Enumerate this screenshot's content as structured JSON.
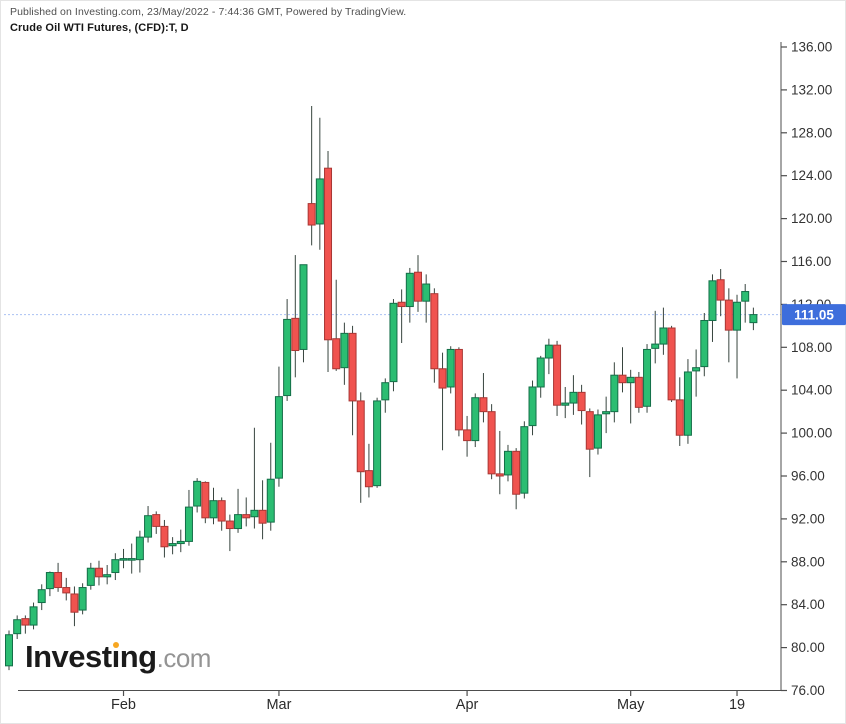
{
  "header": {
    "published": "Published on Investing.com, 23/May/2022 - 7:44:36 GMT, Powered by TradingView.",
    "title": "Crude Oil WTI Futures, (CFD):T, D"
  },
  "logo": {
    "part1": "Invest",
    "dotless_i": "ı",
    "part2": "ng",
    "suffix": ".com"
  },
  "colors": {
    "up_fill": "#2bbd72",
    "up_border": "#146e48",
    "down_fill": "#f0534f",
    "down_border": "#a93734",
    "wick": "#37443e",
    "axis": "#4d4d4d",
    "axis_label": "#333333",
    "price_line": "#aac1f2",
    "badge_bg": "#3e6edc",
    "badge_text": "#ffffff"
  },
  "chart_data": {
    "type": "candlestick",
    "title": "Crude Oil WTI Futures, (CFD):T, D",
    "timeframe": "D",
    "last_price": 111.05,
    "last_price_label": "111.05",
    "y_axis": {
      "min": 76,
      "max": 136,
      "step": 4,
      "labels": [
        "136.00",
        "132.00",
        "128.00",
        "124.00",
        "120.00",
        "116.00",
        "112.00",
        "108.00",
        "104.00",
        "100.00",
        "96.00",
        "92.00",
        "88.00",
        "84.00",
        "80.00",
        "76.00"
      ]
    },
    "x_ticks": [
      {
        "label": "Feb",
        "index": 14
      },
      {
        "label": "Mar",
        "index": 33
      },
      {
        "label": "Apr",
        "index": 56
      },
      {
        "label": "May",
        "index": 76
      },
      {
        "label": "19",
        "index": 89
      }
    ],
    "grid": false,
    "legend": "none",
    "dates": [
      "2022-01-11",
      "2022-01-12",
      "2022-01-13",
      "2022-01-14",
      "2022-01-18",
      "2022-01-19",
      "2022-01-20",
      "2022-01-21",
      "2022-01-24",
      "2022-01-25",
      "2022-01-26",
      "2022-01-27",
      "2022-01-28",
      "2022-01-31",
      "2022-02-01",
      "2022-02-02",
      "2022-02-03",
      "2022-02-04",
      "2022-02-07",
      "2022-02-08",
      "2022-02-09",
      "2022-02-10",
      "2022-02-11",
      "2022-02-14",
      "2022-02-15",
      "2022-02-16",
      "2022-02-17",
      "2022-02-18",
      "2022-02-22",
      "2022-02-23",
      "2022-02-24",
      "2022-02-25",
      "2022-02-28",
      "2022-03-01",
      "2022-03-02",
      "2022-03-03",
      "2022-03-04",
      "2022-03-07",
      "2022-03-08",
      "2022-03-09",
      "2022-03-10",
      "2022-03-11",
      "2022-03-14",
      "2022-03-15",
      "2022-03-16",
      "2022-03-17",
      "2022-03-18",
      "2022-03-21",
      "2022-03-22",
      "2022-03-23",
      "2022-03-24",
      "2022-03-25",
      "2022-03-28",
      "2022-03-29",
      "2022-03-30",
      "2022-03-31",
      "2022-04-01",
      "2022-04-04",
      "2022-04-05",
      "2022-04-06",
      "2022-04-07",
      "2022-04-08",
      "2022-04-11",
      "2022-04-12",
      "2022-04-13",
      "2022-04-14",
      "2022-04-18",
      "2022-04-19",
      "2022-04-20",
      "2022-04-21",
      "2022-04-22",
      "2022-04-25",
      "2022-04-26",
      "2022-04-27",
      "2022-04-28",
      "2022-04-29",
      "2022-05-02",
      "2022-05-03",
      "2022-05-04",
      "2022-05-05",
      "2022-05-06",
      "2022-05-09",
      "2022-05-10",
      "2022-05-11",
      "2022-05-12",
      "2022-05-13",
      "2022-05-16",
      "2022-05-17",
      "2022-05-18",
      "2022-05-19",
      "2022-05-20",
      "2022-05-23"
    ],
    "ohlc": [
      [
        78.3,
        81.6,
        77.9,
        81.2
      ],
      [
        81.3,
        83.0,
        80.8,
        82.6
      ],
      [
        82.7,
        83.0,
        81.3,
        82.1
      ],
      [
        82.1,
        84.2,
        81.7,
        83.8
      ],
      [
        84.2,
        85.9,
        83.5,
        85.4
      ],
      [
        85.5,
        87.1,
        84.8,
        87.0
      ],
      [
        87.0,
        87.9,
        85.2,
        85.6
      ],
      [
        85.6,
        86.5,
        84.4,
        85.1
      ],
      [
        85.0,
        85.7,
        82.0,
        83.3
      ],
      [
        83.5,
        86.0,
        83.1,
        85.6
      ],
      [
        85.8,
        87.9,
        85.4,
        87.4
      ],
      [
        87.4,
        88.1,
        85.8,
        86.6
      ],
      [
        86.6,
        87.7,
        85.9,
        86.8
      ],
      [
        87.0,
        88.8,
        86.3,
        88.2
      ],
      [
        88.2,
        89.2,
        87.4,
        88.3
      ],
      [
        88.3,
        89.7,
        86.9,
        88.3
      ],
      [
        88.2,
        90.9,
        87.0,
        90.3
      ],
      [
        90.3,
        93.2,
        89.8,
        92.3
      ],
      [
        92.4,
        92.7,
        90.6,
        91.3
      ],
      [
        91.3,
        91.9,
        88.4,
        89.4
      ],
      [
        89.5,
        90.3,
        88.7,
        89.7
      ],
      [
        89.7,
        91.0,
        88.9,
        89.9
      ],
      [
        89.9,
        94.7,
        89.5,
        93.1
      ],
      [
        93.2,
        95.8,
        92.6,
        95.5
      ],
      [
        95.4,
        95.5,
        91.6,
        92.1
      ],
      [
        92.1,
        94.9,
        91.5,
        93.7
      ],
      [
        93.7,
        94.0,
        90.9,
        91.8
      ],
      [
        91.8,
        92.4,
        89.0,
        91.1
      ],
      [
        91.1,
        94.8,
        90.7,
        92.4
      ],
      [
        92.4,
        94.0,
        91.3,
        92.1
      ],
      [
        92.2,
        100.5,
        91.1,
        92.8
      ],
      [
        92.8,
        95.6,
        90.1,
        91.6
      ],
      [
        91.7,
        99.1,
        90.9,
        95.7
      ],
      [
        95.8,
        106.2,
        95.0,
        103.4
      ],
      [
        103.5,
        112.5,
        103.0,
        110.6
      ],
      [
        110.7,
        116.6,
        105.2,
        107.7
      ],
      [
        107.8,
        115.7,
        106.6,
        115.7
      ],
      [
        121.4,
        130.5,
        117.5,
        119.4
      ],
      [
        119.5,
        129.4,
        117.1,
        123.7
      ],
      [
        124.7,
        126.3,
        105.7,
        108.7
      ],
      [
        108.8,
        114.3,
        105.8,
        106.0
      ],
      [
        106.1,
        110.3,
        104.5,
        109.3
      ],
      [
        109.3,
        110.0,
        99.8,
        103.0
      ],
      [
        103.0,
        103.8,
        93.5,
        96.4
      ],
      [
        96.5,
        99.0,
        94.0,
        95.0
      ],
      [
        95.1,
        103.3,
        94.9,
        103.0
      ],
      [
        103.1,
        105.1,
        101.9,
        104.7
      ],
      [
        104.8,
        112.5,
        103.9,
        112.1
      ],
      [
        112.2,
        113.4,
        108.4,
        111.8
      ],
      [
        111.8,
        115.4,
        110.3,
        114.9
      ],
      [
        115.0,
        116.6,
        111.3,
        112.3
      ],
      [
        112.3,
        114.8,
        110.3,
        113.9
      ],
      [
        113.0,
        113.5,
        104.7,
        106.0
      ],
      [
        106.0,
        107.5,
        98.4,
        104.2
      ],
      [
        104.3,
        108.1,
        103.7,
        107.8
      ],
      [
        107.8,
        108.0,
        99.7,
        100.3
      ],
      [
        100.3,
        101.6,
        97.8,
        99.3
      ],
      [
        99.3,
        103.7,
        98.7,
        103.3
      ],
      [
        103.3,
        105.6,
        101.0,
        102.0
      ],
      [
        102.0,
        102.7,
        95.7,
        96.2
      ],
      [
        96.2,
        100.2,
        94.3,
        96.0
      ],
      [
        96.1,
        98.9,
        95.5,
        98.3
      ],
      [
        98.3,
        98.6,
        92.9,
        94.3
      ],
      [
        94.4,
        101.1,
        93.9,
        100.6
      ],
      [
        100.7,
        104.9,
        99.8,
        104.3
      ],
      [
        104.3,
        107.2,
        103.3,
        107.0
      ],
      [
        107.0,
        108.8,
        105.5,
        108.2
      ],
      [
        108.2,
        108.6,
        101.6,
        102.6
      ],
      [
        102.6,
        104.3,
        101.4,
        102.8
      ],
      [
        102.8,
        105.4,
        101.7,
        103.8
      ],
      [
        103.8,
        104.5,
        100.8,
        102.1
      ],
      [
        102.0,
        102.3,
        95.9,
        98.5
      ],
      [
        98.6,
        102.2,
        98.0,
        101.7
      ],
      [
        101.8,
        103.4,
        100.0,
        102.0
      ],
      [
        102.0,
        106.6,
        101.0,
        105.4
      ],
      [
        105.4,
        108.0,
        103.8,
        104.7
      ],
      [
        104.7,
        105.9,
        100.9,
        105.2
      ],
      [
        105.2,
        105.7,
        101.9,
        102.4
      ],
      [
        102.5,
        108.3,
        101.9,
        107.8
      ],
      [
        107.9,
        111.4,
        106.5,
        108.3
      ],
      [
        108.3,
        111.7,
        107.3,
        109.8
      ],
      [
        109.8,
        110.0,
        102.9,
        103.1
      ],
      [
        103.1,
        105.2,
        98.8,
        99.8
      ],
      [
        99.8,
        106.9,
        99.0,
        105.7
      ],
      [
        105.8,
        107.8,
        103.4,
        106.1
      ],
      [
        106.2,
        111.2,
        105.3,
        110.5
      ],
      [
        110.5,
        114.8,
        108.5,
        114.2
      ],
      [
        114.3,
        115.3,
        110.9,
        112.4
      ],
      [
        112.4,
        113.5,
        106.6,
        109.6
      ],
      [
        109.6,
        112.9,
        105.1,
        112.2
      ],
      [
        112.3,
        113.9,
        110.3,
        113.2
      ],
      [
        110.3,
        111.7,
        109.6,
        111.05
      ]
    ]
  }
}
